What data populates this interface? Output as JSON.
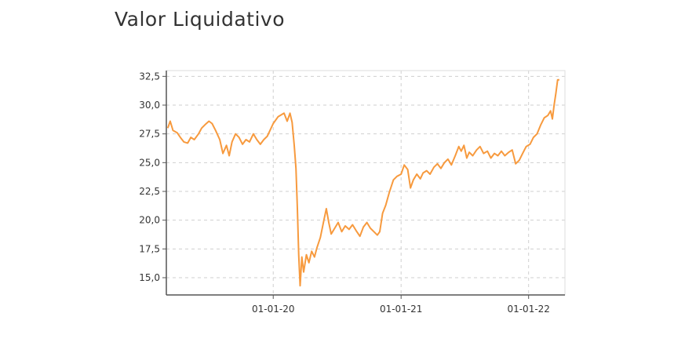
{
  "title": "Valor Liquidativo",
  "chart_data": {
    "type": "line",
    "title": "Valor Liquidativo",
    "xlabel": "",
    "ylabel": "",
    "ylim": [
      13.5,
      33.0
    ],
    "xlim": [
      "2019-03-01",
      "2022-04-15"
    ],
    "y_ticks": [
      {
        "value": 15.0,
        "label": "15,0"
      },
      {
        "value": 17.5,
        "label": "17,5"
      },
      {
        "value": 20.0,
        "label": "20,0"
      },
      {
        "value": 22.5,
        "label": "22,5"
      },
      {
        "value": 25.0,
        "label": "25,0"
      },
      {
        "value": 27.5,
        "label": "27,5"
      },
      {
        "value": 30.0,
        "label": "30,0"
      },
      {
        "value": 32.5,
        "label": "32,5"
      }
    ],
    "x_ticks": [
      {
        "value": "2020-01-01",
        "label": "01-01-20"
      },
      {
        "value": "2021-01-01",
        "label": "01-01-21"
      },
      {
        "value": "2022-01-01",
        "label": "01-01-22"
      }
    ],
    "grid": true,
    "line_color": "#f79a3e",
    "series": [
      {
        "name": "",
        "points": [
          [
            "2019-03-05",
            28.0
          ],
          [
            "2019-03-12",
            28.6
          ],
          [
            "2019-03-20",
            27.8
          ],
          [
            "2019-04-01",
            27.6
          ],
          [
            "2019-04-10",
            27.2
          ],
          [
            "2019-04-20",
            26.8
          ],
          [
            "2019-05-01",
            26.7
          ],
          [
            "2019-05-10",
            27.2
          ],
          [
            "2019-05-20",
            27.0
          ],
          [
            "2019-06-01",
            27.5
          ],
          [
            "2019-06-10",
            28.0
          ],
          [
            "2019-06-20",
            28.3
          ],
          [
            "2019-07-01",
            28.6
          ],
          [
            "2019-07-10",
            28.4
          ],
          [
            "2019-07-20",
            27.8
          ],
          [
            "2019-08-01",
            27.0
          ],
          [
            "2019-08-10",
            25.8
          ],
          [
            "2019-08-20",
            26.5
          ],
          [
            "2019-08-28",
            25.6
          ],
          [
            "2019-09-05",
            26.8
          ],
          [
            "2019-09-15",
            27.5
          ],
          [
            "2019-09-25",
            27.2
          ],
          [
            "2019-10-05",
            26.6
          ],
          [
            "2019-10-15",
            27.0
          ],
          [
            "2019-10-25",
            26.8
          ],
          [
            "2019-11-05",
            27.5
          ],
          [
            "2019-11-15",
            27.0
          ],
          [
            "2019-11-25",
            26.6
          ],
          [
            "2019-12-05",
            27.0
          ],
          [
            "2019-12-15",
            27.3
          ],
          [
            "2020-01-01",
            28.4
          ],
          [
            "2020-01-15",
            29.0
          ],
          [
            "2020-02-01",
            29.3
          ],
          [
            "2020-02-10",
            28.6
          ],
          [
            "2020-02-18",
            29.3
          ],
          [
            "2020-02-24",
            28.5
          ],
          [
            "2020-03-01",
            26.5
          ],
          [
            "2020-03-06",
            24.5
          ],
          [
            "2020-03-10",
            21.0
          ],
          [
            "2020-03-14",
            17.0
          ],
          [
            "2020-03-18",
            14.3
          ],
          [
            "2020-03-23",
            16.8
          ],
          [
            "2020-03-28",
            15.5
          ],
          [
            "2020-04-05",
            17.0
          ],
          [
            "2020-04-12",
            16.3
          ],
          [
            "2020-04-20",
            17.3
          ],
          [
            "2020-04-28",
            16.8
          ],
          [
            "2020-05-05",
            17.6
          ],
          [
            "2020-05-15",
            18.5
          ],
          [
            "2020-05-25",
            20.0
          ],
          [
            "2020-06-01",
            21.0
          ],
          [
            "2020-06-08",
            19.8
          ],
          [
            "2020-06-15",
            18.8
          ],
          [
            "2020-06-25",
            19.3
          ],
          [
            "2020-07-05",
            19.8
          ],
          [
            "2020-07-15",
            19.0
          ],
          [
            "2020-07-25",
            19.5
          ],
          [
            "2020-08-05",
            19.2
          ],
          [
            "2020-08-15",
            19.6
          ],
          [
            "2020-08-25",
            19.1
          ],
          [
            "2020-09-05",
            18.6
          ],
          [
            "2020-09-15",
            19.4
          ],
          [
            "2020-09-25",
            19.8
          ],
          [
            "2020-10-05",
            19.3
          ],
          [
            "2020-10-15",
            19.0
          ],
          [
            "2020-10-25",
            18.7
          ],
          [
            "2020-11-01",
            19.0
          ],
          [
            "2020-11-09",
            20.6
          ],
          [
            "2020-11-18",
            21.3
          ],
          [
            "2020-11-28",
            22.4
          ],
          [
            "2020-12-10",
            23.5
          ],
          [
            "2020-12-20",
            23.8
          ],
          [
            "2021-01-01",
            24.0
          ],
          [
            "2021-01-10",
            24.8
          ],
          [
            "2021-01-20",
            24.4
          ],
          [
            "2021-01-28",
            22.8
          ],
          [
            "2021-02-05",
            23.5
          ],
          [
            "2021-02-15",
            24.0
          ],
          [
            "2021-02-25",
            23.6
          ],
          [
            "2021-03-05",
            24.1
          ],
          [
            "2021-03-15",
            24.3
          ],
          [
            "2021-03-25",
            24.0
          ],
          [
            "2021-04-05",
            24.6
          ],
          [
            "2021-04-15",
            24.9
          ],
          [
            "2021-04-25",
            24.5
          ],
          [
            "2021-05-05",
            25.0
          ],
          [
            "2021-05-15",
            25.3
          ],
          [
            "2021-05-25",
            24.8
          ],
          [
            "2021-06-05",
            25.6
          ],
          [
            "2021-06-15",
            26.4
          ],
          [
            "2021-06-22",
            26.0
          ],
          [
            "2021-06-30",
            26.5
          ],
          [
            "2021-07-08",
            25.4
          ],
          [
            "2021-07-15",
            25.9
          ],
          [
            "2021-07-25",
            25.6
          ],
          [
            "2021-08-05",
            26.1
          ],
          [
            "2021-08-15",
            26.4
          ],
          [
            "2021-08-25",
            25.8
          ],
          [
            "2021-09-05",
            26.0
          ],
          [
            "2021-09-15",
            25.4
          ],
          [
            "2021-09-25",
            25.8
          ],
          [
            "2021-10-05",
            25.6
          ],
          [
            "2021-10-15",
            26.0
          ],
          [
            "2021-10-25",
            25.6
          ],
          [
            "2021-11-05",
            25.9
          ],
          [
            "2021-11-15",
            26.1
          ],
          [
            "2021-11-25",
            24.9
          ],
          [
            "2021-12-05",
            25.2
          ],
          [
            "2021-12-15",
            25.8
          ],
          [
            "2021-12-25",
            26.4
          ],
          [
            "2022-01-05",
            26.6
          ],
          [
            "2022-01-15",
            27.2
          ],
          [
            "2022-01-25",
            27.5
          ],
          [
            "2022-02-05",
            28.3
          ],
          [
            "2022-02-15",
            28.9
          ],
          [
            "2022-02-25",
            29.1
          ],
          [
            "2022-03-05",
            29.5
          ],
          [
            "2022-03-10",
            28.8
          ],
          [
            "2022-03-15",
            30.0
          ],
          [
            "2022-03-20",
            31.0
          ],
          [
            "2022-03-25",
            32.2
          ],
          [
            "2022-03-30",
            32.2
          ]
        ]
      }
    ]
  }
}
